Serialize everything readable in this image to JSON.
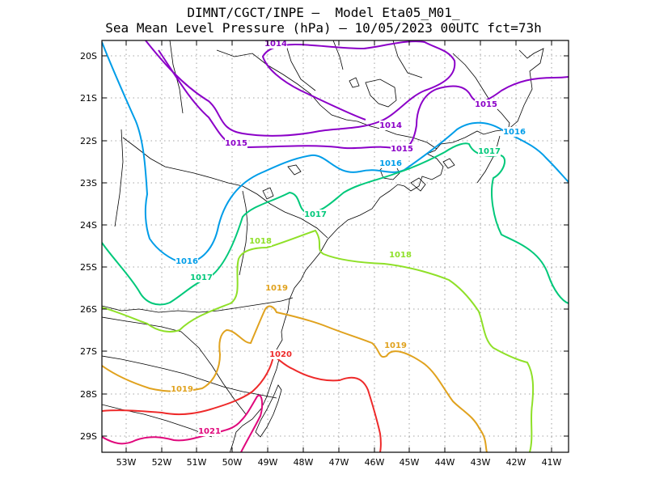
{
  "header": {
    "line1": "DIMNT/CGCT/INPE –  Model Eta05_M01_",
    "line2": "Sea Mean Level Pressure (hPa) – 10/05/2023 00UTC fct=73h"
  },
  "axes": {
    "lat_labels": [
      "20S",
      "21S",
      "22S",
      "23S",
      "24S",
      "25S",
      "26S",
      "27S",
      "28S",
      "29S"
    ],
    "lon_labels": [
      "53W",
      "52W",
      "51W",
      "50W",
      "49W",
      "48W",
      "47W",
      "46W",
      "45W",
      "44W",
      "43W",
      "42W",
      "41W"
    ]
  },
  "colors": {
    "c1014": "#8b00c8",
    "c1015": "#8b00c8",
    "c1016": "#009de8",
    "c1017": "#00c87a",
    "c1018": "#8fe028",
    "c1019": "#e0a21e",
    "c1020": "#ee2a2a",
    "c1021": "#e0087c",
    "coast": "#000000",
    "grid": "#888888"
  },
  "contour_labels": [
    {
      "text": "1014",
      "color": "#8b00c8"
    },
    {
      "text": "1014",
      "color": "#8b00c8"
    },
    {
      "text": "1015",
      "color": "#8b00c8"
    },
    {
      "text": "1015",
      "color": "#8b00c8"
    },
    {
      "text": "1015",
      "color": "#8b00c8"
    },
    {
      "text": "1016",
      "color": "#009de8"
    },
    {
      "text": "1016",
      "color": "#009de8"
    },
    {
      "text": "1016",
      "color": "#009de8"
    },
    {
      "text": "1017",
      "color": "#00c87a"
    },
    {
      "text": "1017",
      "color": "#00c87a"
    },
    {
      "text": "1017",
      "color": "#00c87a"
    },
    {
      "text": "1018",
      "color": "#8fe028"
    },
    {
      "text": "1018",
      "color": "#8fe028"
    },
    {
      "text": "1019",
      "color": "#e0a21e"
    },
    {
      "text": "1019",
      "color": "#e0a21e"
    },
    {
      "text": "1019",
      "color": "#e0a21e"
    },
    {
      "text": "1020",
      "color": "#ee2a2a"
    },
    {
      "text": "1021",
      "color": "#e0087c"
    }
  ]
}
